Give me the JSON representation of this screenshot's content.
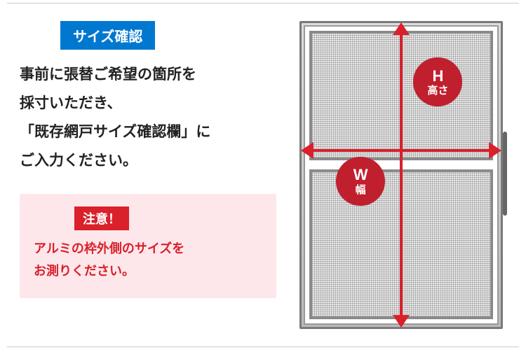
{
  "colors": {
    "badge_bg": "#0078d0",
    "badge_text": "#ffffff",
    "body_text": "#222222",
    "warning_box_bg": "#fde7ea",
    "warning_badge_bg": "#d9202b",
    "warning_text": "#d9202b",
    "arrow": "#d9202b",
    "circle_bg": "#c01f2e"
  },
  "left": {
    "badge": "サイズ確認",
    "instructions_line1": "事前に張替ご希望の箇所を",
    "instructions_line2": "採寸いただき、",
    "instructions_line3": "「既存網戸サイズ確認欄」に",
    "instructions_line4": "ご入力ください。"
  },
  "warning": {
    "badge": "注意！",
    "line1": "アルミの枠外側のサイズを",
    "line2": "お測りください。"
  },
  "diagram": {
    "height_label_main": "H",
    "height_label_sub": "高さ",
    "width_label_main": "W",
    "width_label_sub": "幅"
  }
}
